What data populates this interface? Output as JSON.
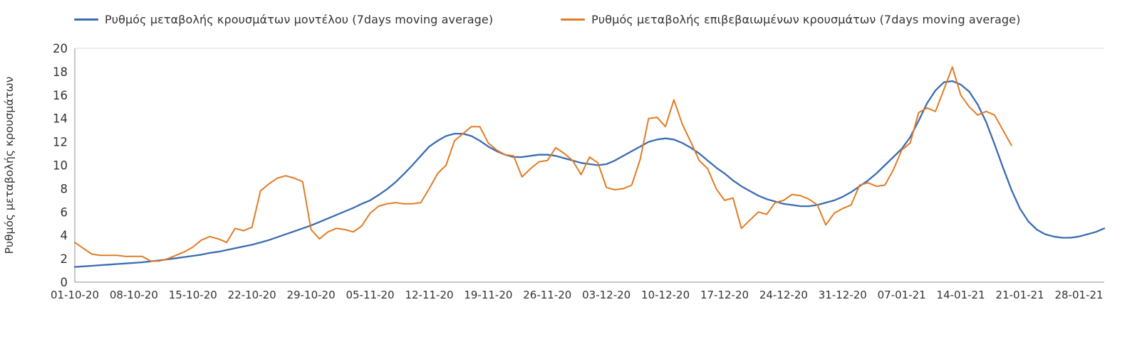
{
  "chart_data": {
    "type": "line",
    "title": "",
    "xlabel": "",
    "ylabel": "Ρυθμός μεταβολής κρουσμάτων",
    "ylim": [
      0,
      20
    ],
    "y_ticks": [
      0,
      2,
      4,
      6,
      8,
      10,
      12,
      14,
      16,
      18,
      20
    ],
    "x_tick_labels": [
      "01-10-20",
      "08-10-20",
      "15-10-20",
      "22-10-20",
      "29-10-20",
      "05-11-20",
      "12-11-20",
      "19-11-20",
      "26-11-20",
      "03-12-20",
      "10-12-20",
      "17-12-20",
      "24-12-20",
      "31-12-20",
      "07-01-21",
      "14-01-21",
      "21-01-21",
      "28-01-21"
    ],
    "x_tick_interval_days": 7,
    "x_total_days": 122,
    "points_per_day": 1,
    "grid": "off",
    "legend_position": "top",
    "series": [
      {
        "name": "Ρυθμός μεταβολής κρουσμάτων μοντέλου (7days moving average)",
        "color": "#3a6cb2",
        "line_style": "smooth",
        "values": [
          1.3,
          1.35,
          1.4,
          1.45,
          1.5,
          1.55,
          1.6,
          1.65,
          1.7,
          1.78,
          1.86,
          1.95,
          2.05,
          2.15,
          2.25,
          2.35,
          2.5,
          2.6,
          2.75,
          2.9,
          3.05,
          3.2,
          3.4,
          3.6,
          3.85,
          4.1,
          4.35,
          4.6,
          4.85,
          5.15,
          5.45,
          5.75,
          6.05,
          6.35,
          6.7,
          7.0,
          7.45,
          7.95,
          8.55,
          9.25,
          10.0,
          10.8,
          11.6,
          12.1,
          12.5,
          12.7,
          12.7,
          12.5,
          12.1,
          11.6,
          11.2,
          10.9,
          10.7,
          10.7,
          10.8,
          10.9,
          10.9,
          10.8,
          10.6,
          10.4,
          10.2,
          10.1,
          10.0,
          10.1,
          10.4,
          10.8,
          11.2,
          11.6,
          12.0,
          12.2,
          12.3,
          12.2,
          11.9,
          11.5,
          11.0,
          10.4,
          9.8,
          9.3,
          8.7,
          8.2,
          7.8,
          7.4,
          7.1,
          6.9,
          6.7,
          6.6,
          6.5,
          6.5,
          6.6,
          6.8,
          7.0,
          7.3,
          7.7,
          8.2,
          8.7,
          9.3,
          10.0,
          10.7,
          11.4,
          12.4,
          13.8,
          15.3,
          16.4,
          17.1,
          17.2,
          16.9,
          16.3,
          15.2,
          13.7,
          11.8,
          9.8,
          7.9,
          6.3,
          5.2,
          4.5,
          4.1,
          3.9,
          3.8,
          3.8,
          3.9,
          4.1,
          4.3,
          4.6
        ]
      },
      {
        "name": "Ρυθμός μεταβολής επιβεβαιωμένων κρουσμάτων (7days moving average)",
        "color": "#e07c25",
        "line_style": "jagged",
        "values": [
          3.4,
          2.9,
          2.4,
          2.3,
          2.3,
          2.3,
          2.2,
          2.2,
          2.2,
          1.8,
          1.8,
          2.0,
          2.3,
          2.6,
          3.0,
          3.6,
          3.9,
          3.7,
          3.4,
          4.6,
          4.4,
          4.7,
          7.8,
          8.4,
          8.9,
          9.1,
          8.9,
          8.6,
          4.5,
          3.7,
          4.3,
          4.6,
          4.5,
          4.3,
          4.8,
          5.9,
          6.5,
          6.7,
          6.8,
          6.7,
          6.7,
          6.8,
          8.0,
          9.3,
          10.0,
          12.1,
          12.7,
          13.3,
          13.3,
          11.9,
          11.3,
          10.9,
          10.8,
          9.0,
          9.7,
          10.3,
          10.4,
          11.5,
          11.0,
          10.4,
          9.2,
          10.7,
          10.2,
          8.1,
          7.9,
          8.0,
          8.3,
          10.5,
          14.0,
          14.1,
          13.3,
          15.6,
          13.5,
          12.0,
          10.4,
          9.7,
          8.0,
          7.0,
          7.2,
          4.6,
          5.3,
          6.0,
          5.8,
          6.8,
          7.0,
          7.5,
          7.4,
          7.1,
          6.6,
          4.9,
          5.9,
          6.3,
          6.6,
          8.3,
          8.5,
          8.2,
          8.3,
          9.6,
          11.3,
          11.9,
          14.5,
          14.9,
          14.6,
          16.5,
          18.4,
          16.0,
          15.0,
          14.3,
          14.6,
          14.3,
          13.0,
          11.7
        ]
      }
    ]
  }
}
